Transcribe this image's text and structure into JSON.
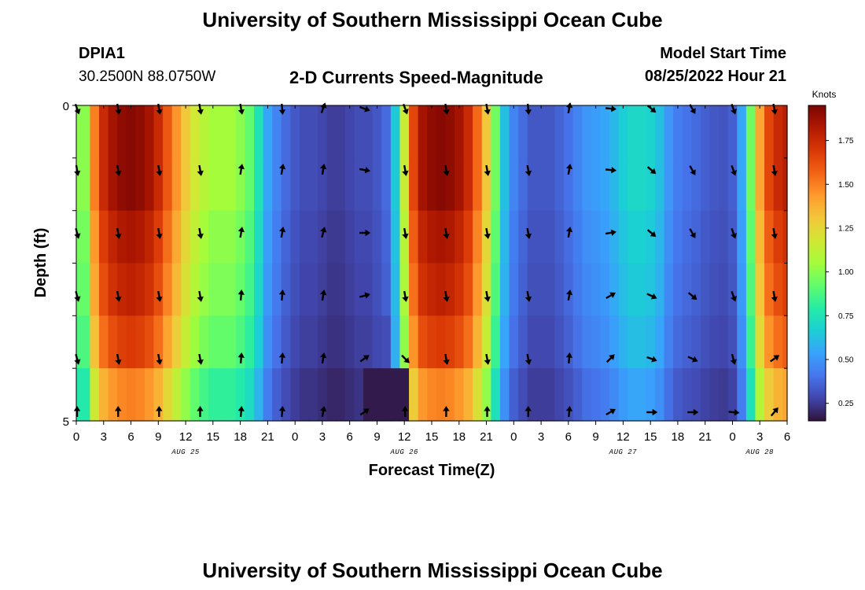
{
  "header": {
    "title": "University of Southern Mississippi Ocean Cube",
    "station_id": "DPIA1",
    "coordinates": "30.2500N  88.0750W",
    "chart_title": "2-D Currents Speed-Magnitude",
    "model_start_label": "Model Start Time",
    "model_start_value": "08/25/2022 Hour 21"
  },
  "footer": {
    "title": "University of Southern Mississippi Ocean Cube"
  },
  "colors": {
    "palette": [
      "#30123b",
      "#4145ab",
      "#4675ed",
      "#39a2fc",
      "#1bcfd4",
      "#24eca6",
      "#61fc6c",
      "#a4fc3b",
      "#d1e834",
      "#f3c63a",
      "#fe9b2d",
      "#f36315",
      "#d93806",
      "#b11901",
      "#7a0403"
    ]
  },
  "chart_data": {
    "type": "heatmap",
    "title": "2-D Currents Speed-Magnitude",
    "xlabel": "Forecast Time(Z)",
    "ylabel": "Depth (ft)",
    "y_tick_labels": [
      "0",
      "5"
    ],
    "ylim": [
      0,
      5
    ],
    "x_tick_labels": [
      "0",
      "3",
      "6",
      "9",
      "12",
      "15",
      "18",
      "21",
      "0",
      "3",
      "6",
      "9",
      "12",
      "15",
      "18",
      "21",
      "0",
      "3",
      "6",
      "9",
      "12",
      "15",
      "18",
      "21",
      "0",
      "3",
      "6"
    ],
    "day_labels": [
      "AUG 25",
      "AUG 26",
      "AUG 27",
      "AUG 28"
    ],
    "colorbar": {
      "label": "Knots",
      "min": 0.15,
      "max": 1.95,
      "tick_labels": [
        "0.25",
        "0.50",
        "0.75",
        "1.00",
        "1.25",
        "1.50",
        "1.75"
      ],
      "tick_values": [
        0.25,
        0.5,
        0.75,
        1.0,
        1.25,
        1.5,
        1.75
      ]
    },
    "x_hours": [
      0,
      1,
      2,
      3,
      4,
      5,
      6,
      7,
      8,
      9,
      10,
      11,
      12,
      13,
      14,
      15,
      16,
      17,
      18,
      19,
      20,
      21,
      22,
      23,
      24,
      25,
      26,
      27,
      28,
      29,
      30,
      31,
      32,
      33,
      34,
      35,
      36,
      37,
      38,
      39,
      40,
      41,
      42,
      43,
      44,
      45,
      46,
      47,
      48,
      49,
      50,
      51,
      52,
      53,
      54,
      55,
      56,
      57,
      58,
      59,
      60,
      61,
      62,
      63,
      64,
      65,
      66,
      67,
      68,
      69,
      70,
      71,
      72,
      73,
      74,
      75,
      76,
      77,
      78
    ],
    "depth_layers": [
      0,
      1,
      2,
      3,
      4,
      5
    ],
    "speed_knots_profile_by_hour": [
      1.0,
      1.0,
      1.5,
      1.75,
      1.85,
      1.9,
      1.92,
      1.9,
      1.85,
      1.75,
      1.6,
      1.45,
      1.3,
      1.18,
      1.1,
      1.05,
      1.05,
      1.05,
      1.0,
      0.92,
      0.75,
      0.55,
      0.45,
      0.38,
      0.33,
      0.3,
      0.3,
      0.28,
      0.26,
      0.26,
      0.28,
      0.3,
      0.3,
      0.33,
      0.38,
      0.65,
      1.15,
      1.65,
      1.85,
      1.9,
      1.92,
      1.9,
      1.85,
      1.75,
      1.55,
      1.3,
      0.95,
      0.62,
      0.45,
      0.38,
      0.33,
      0.33,
      0.33,
      0.36,
      0.4,
      0.45,
      0.5,
      0.52,
      0.55,
      0.6,
      0.66,
      0.7,
      0.7,
      0.68,
      0.62,
      0.5,
      0.43,
      0.4,
      0.38,
      0.35,
      0.33,
      0.32,
      0.35,
      0.55,
      0.95,
      1.4,
      1.65,
      1.75,
      1.8
    ],
    "layer_factors": [
      1.0,
      1.0,
      0.96,
      0.93,
      0.88,
      0.78
    ],
    "arrow_columns_hours": [
      0,
      4.5,
      9,
      13.5,
      18,
      22.5,
      27,
      31.5,
      36,
      40.5,
      45,
      49.5,
      54,
      58.5,
      63,
      67.5,
      72,
      76.5
    ],
    "arrow_angles_deg": [
      [
        160,
        170,
        170,
        170,
        170,
        175,
        20,
        110,
        160,
        170,
        170,
        175,
        10,
        95,
        130,
        150,
        160,
        170
      ],
      [
        170,
        170,
        170,
        170,
        10,
        10,
        10,
        100,
        170,
        170,
        170,
        170,
        10,
        95,
        130,
        150,
        160,
        170
      ],
      [
        165,
        170,
        170,
        170,
        10,
        10,
        15,
        90,
        170,
        170,
        170,
        170,
        10,
        80,
        130,
        150,
        160,
        170
      ],
      [
        165,
        170,
        170,
        170,
        5,
        5,
        10,
        75,
        170,
        170,
        170,
        170,
        10,
        60,
        115,
        130,
        160,
        170
      ],
      [
        165,
        170,
        170,
        170,
        5,
        5,
        10,
        55,
        135,
        170,
        170,
        170,
        5,
        45,
        110,
        115,
        165,
        55
      ],
      [
        0,
        0,
        0,
        0,
        5,
        5,
        10,
        55,
        0,
        0,
        0,
        0,
        5,
        60,
        90,
        90,
        95,
        40
      ]
    ]
  }
}
